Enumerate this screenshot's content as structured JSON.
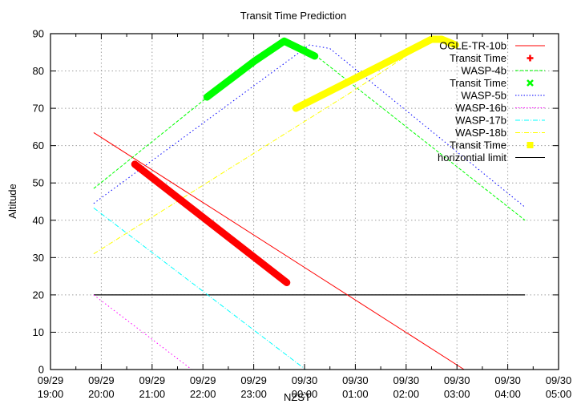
{
  "chart_data": {
    "type": "line",
    "title": "Transit Time Prediction",
    "xlabel": "NZST",
    "ylabel": "Altitude",
    "ylim": [
      0,
      90
    ],
    "yticks": [
      "0",
      "10",
      "20",
      "30",
      "40",
      "50",
      "60",
      "70",
      "80",
      "90"
    ],
    "xticks": [
      {
        "date": "09/29",
        "time": "19:00"
      },
      {
        "date": "09/29",
        "time": "20:00"
      },
      {
        "date": "09/29",
        "time": "21:00"
      },
      {
        "date": "09/29",
        "time": "22:00"
      },
      {
        "date": "09/29",
        "time": "23:00"
      },
      {
        "date": "09/30",
        "time": "00:00"
      },
      {
        "date": "09/30",
        "time": "01:00"
      },
      {
        "date": "09/30",
        "time": "02:00"
      },
      {
        "date": "09/30",
        "time": "03:00"
      },
      {
        "date": "09/30",
        "time": "04:00"
      },
      {
        "date": "09/30",
        "time": "05:00"
      }
    ],
    "xlim_hours": [
      19,
      29
    ],
    "grid": true,
    "legend_position": "top-right, inside",
    "series": [
      {
        "name": "OGLE-TR-10b",
        "color": "#ff0000",
        "style": "solid",
        "x_hours": [
          19.85,
          27.14
        ],
        "y": [
          63.5,
          0
        ]
      },
      {
        "name": "Transit Time",
        "of": "OGLE-TR-10b",
        "color": "#ff0000",
        "marker": "plus",
        "x_hours": [
          20.66,
          23.65
        ],
        "y": [
          55,
          23.3
        ]
      },
      {
        "name": "WASP-4b",
        "color": "#00ff00",
        "style": "dashed",
        "x_hours": [
          19.85,
          22.0,
          23.6,
          24.0,
          28.34
        ],
        "y": [
          48.5,
          72.0,
          87.5,
          86.5,
          40
        ]
      },
      {
        "name": "Transit Time",
        "of": "WASP-4b",
        "color": "#00ff00",
        "marker": "cross",
        "x_hours": [
          22.08,
          23.0,
          23.6,
          24.2
        ],
        "y": [
          73,
          82.5,
          88,
          84
        ]
      },
      {
        "name": "WASP-5b",
        "color": "#0000ff",
        "style": "dotted",
        "x_hours": [
          19.85,
          23.5,
          24.1,
          24.5,
          28.34
        ],
        "y": [
          44.5,
          81.0,
          87.0,
          86.0,
          43.5
        ]
      },
      {
        "name": "WASP-16b",
        "color": "#ff00ff",
        "style": "dotted",
        "x_hours": [
          19.85,
          21.78
        ],
        "y": [
          20,
          0
        ]
      },
      {
        "name": "WASP-17b",
        "color": "#00ffff",
        "style": "dash-dot",
        "x_hours": [
          19.85,
          24.02
        ],
        "y": [
          43.3,
          0
        ]
      },
      {
        "name": "WASP-18b",
        "color": "#ffff00",
        "style": "dash-dot",
        "x_hours": [
          19.85,
          25.0,
          26.5,
          26.7,
          27.02
        ],
        "y": [
          31,
          75,
          88.5,
          88.5,
          86.5
        ]
      },
      {
        "name": "Transit Time",
        "of": "WASP-18b",
        "color": "#ffff00",
        "marker": "filled-square",
        "x_hours": [
          23.83,
          25.5,
          26.5,
          26.7,
          26.97
        ],
        "y": [
          70,
          81.5,
          88.5,
          88.5,
          87
        ]
      },
      {
        "name": "horizontial limit",
        "color": "#000000",
        "style": "solid",
        "x_hours": [
          19.85,
          28.34
        ],
        "y": [
          20,
          20
        ]
      }
    ]
  },
  "legend": {
    "items": [
      {
        "label": "OGLE-TR-10b",
        "color": "#ff0000",
        "kind": "solid"
      },
      {
        "label": "Transit Time",
        "color": "#ff0000",
        "kind": "plus"
      },
      {
        "label": "WASP-4b",
        "color": "#00ff00",
        "kind": "dashed"
      },
      {
        "label": "Transit Time",
        "color": "#00ff00",
        "kind": "cross"
      },
      {
        "label": "WASP-5b",
        "color": "#0000ff",
        "kind": "dotted"
      },
      {
        "label": "WASP-16b",
        "color": "#ff00ff",
        "kind": "dotted"
      },
      {
        "label": "WASP-17b",
        "color": "#00ffff",
        "kind": "dashdot"
      },
      {
        "label": "WASP-18b",
        "color": "#ffff00",
        "kind": "dashdot"
      },
      {
        "label": "Transit Time",
        "color": "#ffff00",
        "kind": "square"
      },
      {
        "label": "horizontial limit",
        "color": "#000000",
        "kind": "solid"
      }
    ]
  }
}
